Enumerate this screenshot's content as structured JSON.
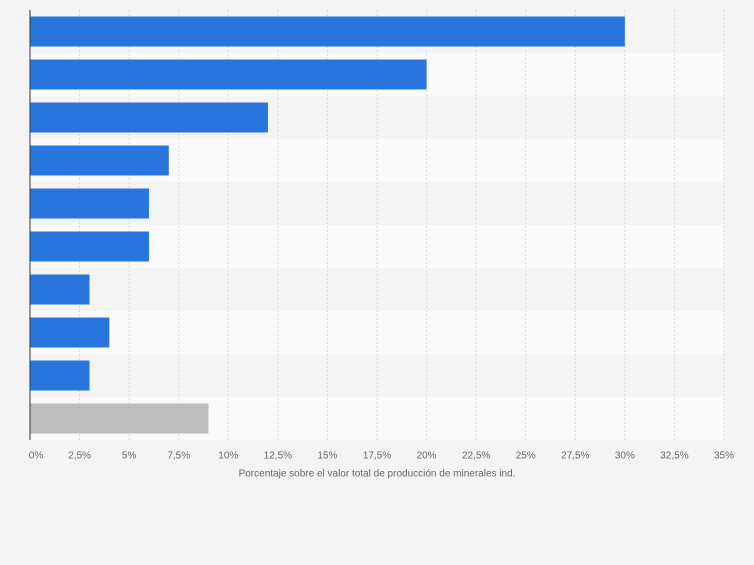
{
  "chart_data": {
    "type": "bar",
    "orientation": "horizontal",
    "x_label": "Porcentaje sobre el valor total de producción de minerales ind.",
    "categories": [
      null,
      null,
      null,
      null,
      null,
      null,
      null,
      null,
      null,
      null
    ],
    "values": [
      30,
      20,
      12,
      7,
      6,
      6,
      3,
      4,
      3,
      9
    ],
    "colors": [
      "#2876dd",
      "#2876dd",
      "#2876dd",
      "#2876dd",
      "#2876dd",
      "#2876dd",
      "#2876dd",
      "#2876dd",
      "#2876dd",
      "#bdbdbd"
    ],
    "xlim": [
      0,
      35
    ],
    "xticks": [
      {
        "value": 0,
        "label": "0%"
      },
      {
        "value": 2.5,
        "label": "2,5%"
      },
      {
        "value": 5,
        "label": "5%"
      },
      {
        "value": 7.5,
        "label": "7,5%"
      },
      {
        "value": 10,
        "label": "10%"
      },
      {
        "value": 12.5,
        "label": "12,5%"
      },
      {
        "value": 15,
        "label": "15%"
      },
      {
        "value": 17.5,
        "label": "17,5%"
      },
      {
        "value": 20,
        "label": "20%"
      },
      {
        "value": 22.5,
        "label": "22,5%"
      },
      {
        "value": 25,
        "label": "25%"
      },
      {
        "value": 27.5,
        "label": "27,5%"
      },
      {
        "value": 30,
        "label": "30%"
      },
      {
        "value": 32.5,
        "label": "32,5%"
      },
      {
        "value": 35,
        "label": "35%"
      }
    ],
    "grid": true
  }
}
